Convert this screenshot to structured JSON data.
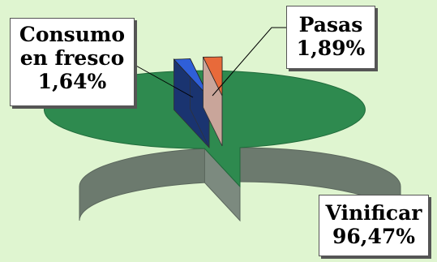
{
  "chart_data": {
    "type": "pie",
    "title": "",
    "slices": [
      {
        "label_lines": [
          "Vinificar",
          "96,47%"
        ],
        "value": 96.47,
        "color": "#2e8a4f",
        "side_color": "#6c7a6e",
        "exploded": false
      },
      {
        "label_lines": [
          "Consumo",
          "en fresco",
          "1,64%"
        ],
        "value": 1.64,
        "color": "#2f5fd8",
        "side_color": "#1a3470",
        "exploded": true
      },
      {
        "label_lines": [
          "Pasas",
          "1,89%"
        ],
        "value": 1.89,
        "color": "#e86a3a",
        "side_color": "#c9a59a",
        "exploded": true
      }
    ],
    "legend": "none",
    "style": "3d-exploded"
  }
}
